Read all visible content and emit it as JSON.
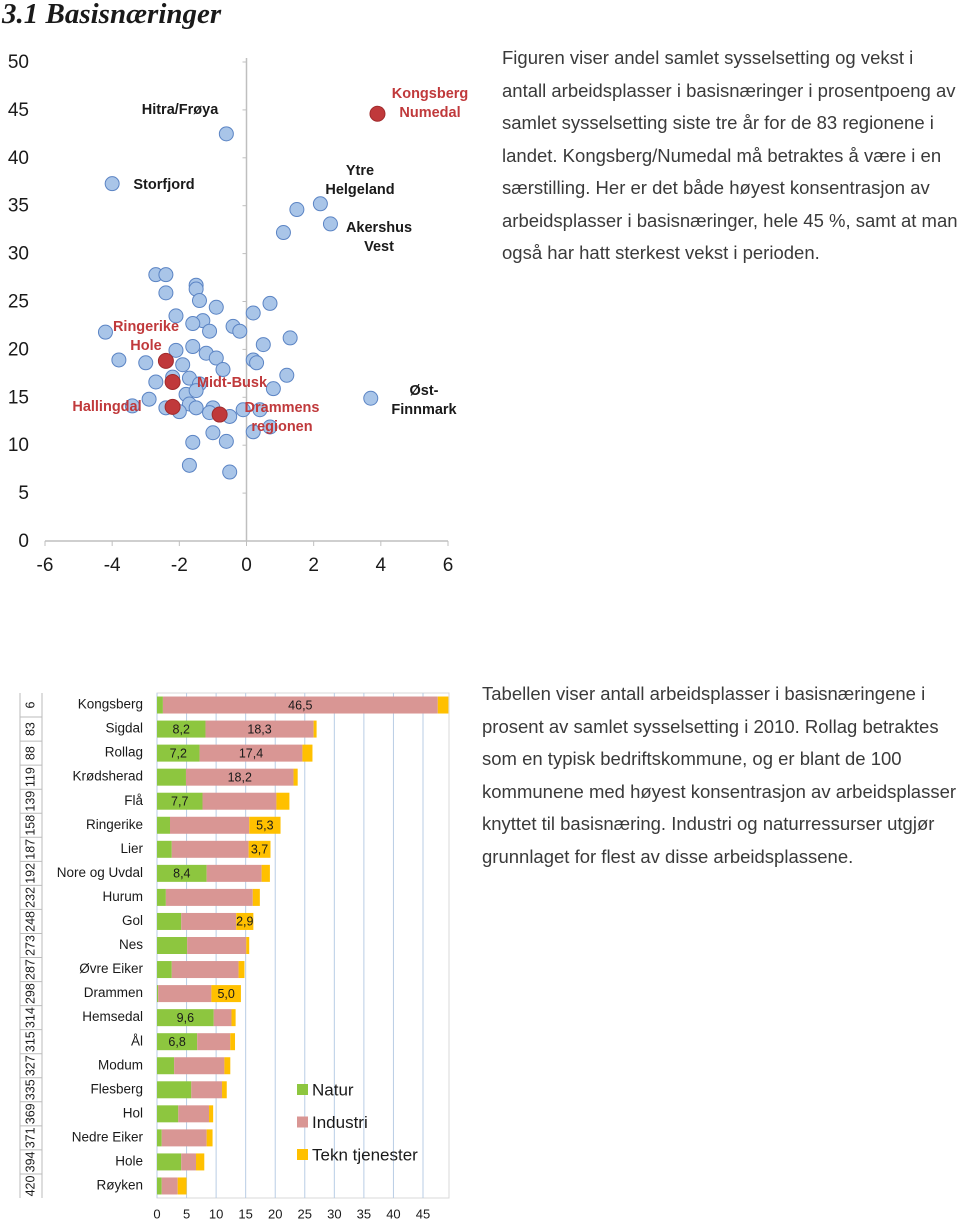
{
  "title": "3.1 Basisnæringer",
  "paragraphs": [
    "Figuren viser andel samlet sysselsetting og vekst i antall arbeidsplasser i basisnæringer i prosentpoeng av samlet sysselsetting siste tre år for de 83 regionene i landet. Kongsberg/Numedal må betraktes å være i en særstilling. Her er det både høyest konsentrasjon av arbeidsplasser i basisnæringer, hele 45 %, samt at man også har hatt sterkest vekst i perioden.",
    "Tabellen viser antall arbeidsplasser i basisnæringene i prosent av samlet sysselsetting i 2010. Rollag betraktes som en typisk bedriftskommune, og er blant de 100 kommunene med høyest konsentrasjon av arbeidsplasser knyttet til basisnæring. Industri og naturressurser utgjør grunnlaget for flest av disse arbeidsplassene."
  ],
  "chart_data": [
    {
      "type": "scatter",
      "xlim": [
        -6,
        6
      ],
      "xticks": [
        -6,
        -4,
        -2,
        0,
        2,
        4,
        6
      ],
      "ylim": [
        0,
        50
      ],
      "yticks": [
        0,
        5,
        10,
        15,
        20,
        25,
        30,
        35,
        40,
        45,
        50
      ],
      "series": [
        {
          "color": "#a9c5e8",
          "x": [
            -0.6,
            -4.0,
            2.2,
            1.5,
            2.5,
            1.1,
            3.7,
            -2.7,
            -2.4,
            -2.4,
            -1.5,
            -1.5,
            -1.4,
            -0.9,
            0.7,
            0.2,
            -2.1,
            -1.3,
            -1.6,
            -0.4,
            -0.2,
            -1.1,
            -4.2,
            1.3,
            0.5,
            -1.6,
            -2.1,
            -1.2,
            -0.9,
            0.2,
            -3.8,
            0.3,
            -3.0,
            -1.9,
            -0.7,
            1.2,
            -2.2,
            -1.7,
            -2.7,
            -1.4,
            0.8,
            -1.8,
            -1.5,
            -2.9,
            -3.4,
            -1.7,
            -1.5,
            -2.4,
            -2.0,
            -1.0,
            -1.1,
            -0.5,
            -0.1,
            0.4,
            0.2,
            0.7,
            -1.0,
            -1.6,
            -0.6,
            -1.7,
            -0.5
          ],
          "y": [
            42.5,
            37.3,
            35.2,
            34.6,
            33.1,
            32.2,
            14.9,
            27.8,
            27.8,
            25.9,
            26.7,
            26.3,
            25.1,
            24.4,
            24.8,
            23.8,
            23.5,
            23.0,
            22.7,
            22.4,
            21.9,
            21.9,
            21.8,
            21.2,
            20.5,
            20.3,
            19.9,
            19.6,
            19.1,
            18.9,
            18.9,
            18.6,
            18.6,
            18.4,
            17.9,
            17.3,
            17.1,
            17.0,
            16.6,
            16.4,
            15.9,
            15.3,
            15.7,
            14.8,
            14.1,
            14.3,
            13.9,
            13.9,
            13.5,
            13.9,
            13.4,
            13.0,
            13.7,
            13.7,
            11.4,
            11.9,
            11.3,
            10.3,
            10.4,
            7.9,
            7.2
          ]
        },
        {
          "color": "#c0393b",
          "x": [
            3.9,
            -2.4,
            -2.2,
            -2.2,
            -0.8
          ],
          "y": [
            44.6,
            18.8,
            16.6,
            14.0,
            13.2
          ]
        }
      ],
      "annotations": [
        {
          "lines": [
            "Hitra/Frøya"
          ],
          "color": "#1a1a1a"
        },
        {
          "lines": [
            "Storfjord"
          ],
          "color": "#1a1a1a"
        },
        {
          "lines": [
            "Kongsberg",
            "Numedal"
          ],
          "color": "#c0393b"
        },
        {
          "lines": [
            "Ytre",
            "Helgeland"
          ],
          "color": "#1a1a1a"
        },
        {
          "lines": [
            "Akershus",
            "Vest"
          ],
          "color": "#1a1a1a"
        },
        {
          "lines": [
            "Ringerike",
            "Hole"
          ],
          "color": "#c0393b"
        },
        {
          "lines": [
            "Midt-Busk"
          ],
          "color": "#c0393b"
        },
        {
          "lines": [
            "Hallingdal"
          ],
          "color": "#c0393b"
        },
        {
          "lines": [
            "Drammens",
            "regionen"
          ],
          "color": "#c0393b"
        },
        {
          "lines": [
            "Øst-",
            "Finnmark"
          ],
          "color": "#1a1a1a"
        }
      ]
    },
    {
      "type": "stacked-barh",
      "ranks": [
        6,
        83,
        88,
        119,
        139,
        158,
        187,
        192,
        232,
        248,
        273,
        287,
        298,
        314,
        315,
        327,
        335,
        369,
        371,
        394,
        420
      ],
      "categories": [
        "Kongsberg",
        "Sigdal",
        "Rollag",
        "Krødsherad",
        "Flå",
        "Ringerike",
        "Lier",
        "Nore og Uvdal",
        "Hurum",
        "Gol",
        "Nes",
        "Øvre Eiker",
        "Drammen",
        "Hemsedal",
        "Ål",
        "Modum",
        "Flesberg",
        "Hol",
        "Nedre Eiker",
        "Hole",
        "Røyken"
      ],
      "xlim": [
        0,
        50
      ],
      "xticks": [
        0,
        5,
        10,
        15,
        20,
        25,
        30,
        35,
        40,
        45
      ],
      "grid": true,
      "legend": "bottom-right",
      "series": [
        {
          "name": "Natur",
          "color": "#8dc63f",
          "values": [
            1.0,
            8.2,
            7.2,
            4.9,
            7.7,
            2.2,
            2.5,
            8.4,
            1.5,
            4.1,
            5.1,
            2.5,
            0.2,
            9.6,
            6.8,
            2.9,
            5.8,
            3.6,
            0.8,
            4.1,
            0.8
          ],
          "value_labels": [
            null,
            "8,2",
            "7,2",
            null,
            "7,7",
            null,
            null,
            "8,4",
            null,
            null,
            null,
            null,
            null,
            "9,6",
            "6,8",
            null,
            null,
            null,
            null,
            null,
            null
          ]
        },
        {
          "name": "Industri",
          "color": "#d99694",
          "values": [
            46.5,
            18.3,
            17.4,
            18.2,
            12.5,
            13.4,
            13.0,
            9.3,
            14.7,
            9.3,
            10.0,
            11.3,
            9.0,
            3.0,
            5.6,
            8.5,
            5.2,
            5.2,
            7.6,
            2.5,
            2.7
          ],
          "value_labels": [
            "46,5",
            "18,3",
            "17,4",
            "18,2",
            null,
            null,
            null,
            null,
            null,
            null,
            null,
            null,
            null,
            null,
            null,
            null,
            null,
            null,
            null,
            null,
            null
          ]
        },
        {
          "name": "Tekn tjenester",
          "color": "#ffc000",
          "values": [
            1.8,
            0.5,
            1.7,
            0.7,
            2.2,
            5.3,
            3.7,
            1.4,
            1.2,
            2.9,
            0.5,
            1.0,
            5.0,
            0.7,
            0.8,
            1.0,
            0.8,
            0.7,
            1.0,
            1.4,
            1.5
          ],
          "value_labels": [
            null,
            null,
            null,
            null,
            null,
            "5,3",
            "3,7",
            null,
            null,
            "2,9",
            null,
            null,
            "5,0",
            null,
            null,
            null,
            null,
            null,
            null,
            null,
            null
          ]
        }
      ]
    }
  ]
}
